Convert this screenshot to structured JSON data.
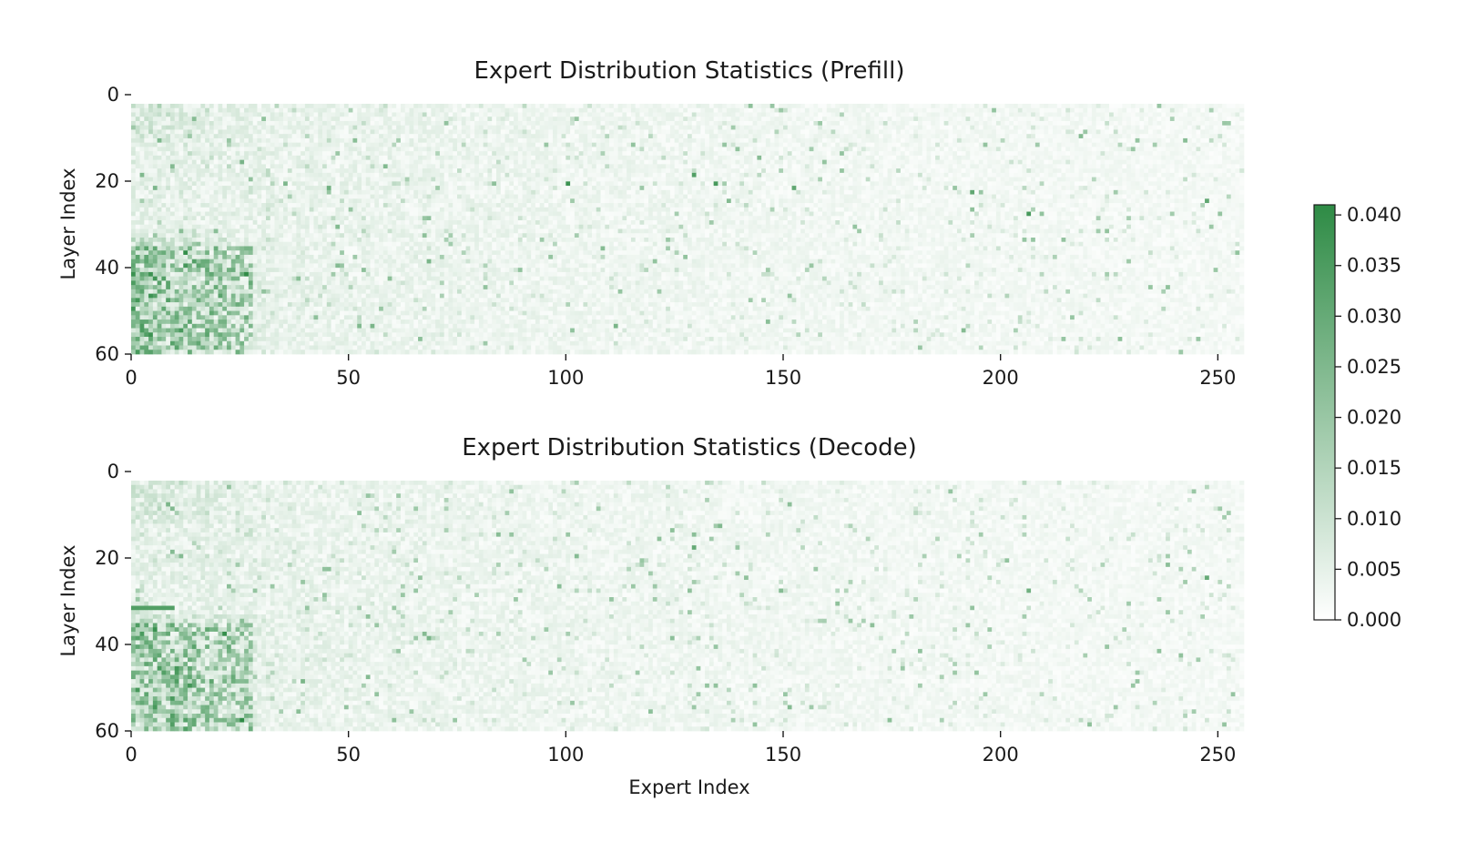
{
  "chart_data": [
    {
      "type": "heatmap",
      "id": "prefill",
      "title": "Expert Distribution Statistics (Prefill)",
      "xlabel": "",
      "ylabel": "Layer Index",
      "x_ticks": [
        0,
        50,
        100,
        150,
        200,
        250
      ],
      "y_ticks": [
        0,
        20,
        40,
        60
      ],
      "xlim": [
        0,
        256
      ],
      "ylim": [
        0,
        58
      ],
      "rows": 58,
      "cols": 256,
      "colormap": {
        "low": "#ffffff",
        "high": "#2e8b45"
      },
      "value_range": [
        0,
        0.041
      ],
      "hotspots": [
        {
          "layer": 18,
          "expert": 100,
          "value": 0.038
        },
        {
          "layer": 16,
          "expert": 129,
          "value": 0.034
        },
        {
          "layer": 18,
          "expert": 134,
          "value": 0.036
        },
        {
          "layer": 19,
          "expert": 152,
          "value": 0.031
        },
        {
          "layer": 25,
          "expert": 206,
          "value": 0.036
        },
        {
          "layer": 20,
          "expert": 193,
          "value": 0.031
        },
        {
          "layer": 22,
          "expert": 247,
          "value": 0.031
        },
        {
          "layer": 19,
          "expert": 45,
          "value": 0.028
        },
        {
          "layer": 36,
          "expert": 68,
          "value": 0.026
        },
        {
          "layer": 51,
          "expert": 55,
          "value": 0.026
        },
        {
          "layer": 51,
          "expert": 111,
          "value": 0.026
        },
        {
          "layer": 7,
          "expert": 218,
          "value": 0.024
        }
      ]
    },
    {
      "type": "heatmap",
      "id": "decode",
      "title": "Expert Distribution Statistics (Decode)",
      "xlabel": "Expert Index",
      "ylabel": "Layer Index",
      "x_ticks": [
        0,
        50,
        100,
        150,
        200,
        250
      ],
      "y_ticks": [
        0,
        20,
        40,
        60
      ],
      "xlim": [
        0,
        256
      ],
      "ylim": [
        0,
        58
      ],
      "rows": 58,
      "cols": 256,
      "colormap": {
        "low": "#ffffff",
        "high": "#2e8b45"
      },
      "value_range": [
        0,
        0.041
      ],
      "hotspots": [
        {
          "layer": 15,
          "expert": 129,
          "value": 0.03
        },
        {
          "layer": 22,
          "expert": 247,
          "value": 0.03
        },
        {
          "layer": 25,
          "expert": 206,
          "value": 0.028
        },
        {
          "layer": 36,
          "expert": 68,
          "value": 0.026
        },
        {
          "layer": 52,
          "expert": 151,
          "value": 0.024
        },
        {
          "layer": 20,
          "expert": 45,
          "value": 0.022
        }
      ],
      "bands": [
        {
          "layer": 29,
          "expert_start": 0,
          "expert_end": 10,
          "value": 0.034
        }
      ]
    }
  ],
  "colorbar": {
    "min": 0.0,
    "max": 0.041,
    "ticks": [
      "0.000",
      "0.005",
      "0.010",
      "0.015",
      "0.020",
      "0.025",
      "0.030",
      "0.035",
      "0.040"
    ],
    "tick_values": [
      0.0,
      0.005,
      0.01,
      0.015,
      0.02,
      0.025,
      0.03,
      0.035,
      0.04
    ],
    "low_color": "#ffffff",
    "high_color": "#2e8b45"
  }
}
